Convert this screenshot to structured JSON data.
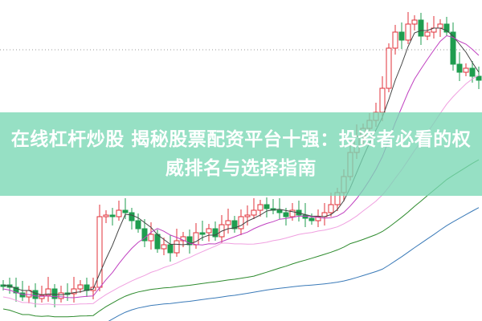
{
  "title": "在线杠杆炒股 揭秘股票配资平台十强：投资者必看的权威排名与选择指南",
  "colors": {
    "banner": "#8fe0c4",
    "up": "#e0303a",
    "down": "#1f9d4f",
    "ma5": "#444444",
    "ma10": "#c040c0",
    "ma20": "#f0a0e0",
    "ma60": "#2e8b2e",
    "ma120": "#3a7ab8"
  }
}
